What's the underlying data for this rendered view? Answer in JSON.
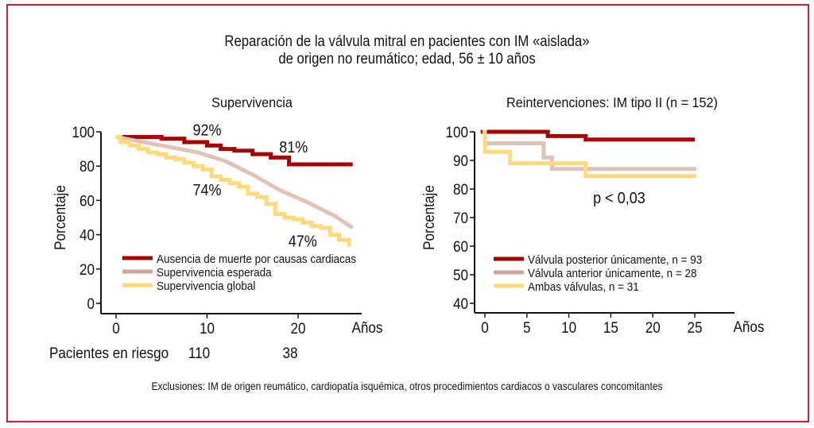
{
  "figure": {
    "title_line1": "Reparación de la válvula mitral en pacientes con IM «aislada»",
    "title_line2": "de origen no reumático; edad, 56 ± 10 años",
    "footer": "Exclusiones: IM de origen reumático, cardiopatía isquémica, otros procedimientos cardiacos o vasculares concomitantes",
    "border_color": "#C8202E"
  },
  "chart_data": [
    {
      "type": "line",
      "title": "Supervivencia",
      "xlabel": "Años",
      "ylabel": "Porcentaje",
      "xlim": [
        0,
        26
      ],
      "ylim": [
        0,
        100
      ],
      "xticks": [
        0,
        10,
        20
      ],
      "xtick_labels": [
        "0",
        "10",
        "20"
      ],
      "yticks": [
        0,
        20,
        40,
        60,
        80,
        100
      ],
      "ytick_labels": [
        "0",
        "20",
        "40",
        "60",
        "80",
        "100"
      ],
      "grid": false,
      "legend_position": "bottom-left",
      "annotations": [
        {
          "text": "92%",
          "x": 10,
          "y": 98
        },
        {
          "text": "81%",
          "x": 19.5,
          "y": 88
        },
        {
          "text": "74%",
          "x": 10,
          "y": 63
        },
        {
          "text": "47%",
          "x": 20.5,
          "y": 33
        }
      ],
      "at_risk": {
        "label": "Pacientes en riesgo",
        "values": [
          {
            "x": 10,
            "n": "110"
          },
          {
            "x": 20,
            "n": "38"
          }
        ]
      },
      "series": [
        {
          "name": "Ausencia de muerte por causas cardiacas",
          "color": "#A80000",
          "step": true,
          "x": [
            0,
            5,
            7.5,
            10,
            11.5,
            13,
            15,
            17,
            19,
            26
          ],
          "y": [
            97,
            96,
            94,
            92,
            90,
            89,
            87,
            85,
            81,
            81
          ]
        },
        {
          "name": "Supervivencia esperada",
          "color": "#E0C2B6",
          "legend_color": "#D0A49A",
          "step": false,
          "x": [
            0,
            3,
            6,
            9,
            12,
            15,
            18,
            21,
            24,
            26
          ],
          "y": [
            97,
            94,
            91,
            88,
            83,
            75,
            66,
            59,
            51,
            44
          ]
        },
        {
          "name": "Supervivencia global",
          "color": "#FFD97A",
          "step": true,
          "x": [
            0,
            0.5,
            1.5,
            2.5,
            3.5,
            4.5,
            5.5,
            6.5,
            7.5,
            8.5,
            9.5,
            10.5,
            11.5,
            12.5,
            13.5,
            14.5,
            15.5,
            16.5,
            17.5,
            18.5,
            19.5,
            20.5,
            21.5,
            22.5,
            23.5,
            24.5,
            25.6
          ],
          "y": [
            97,
            94,
            92,
            90,
            88,
            87,
            85,
            84,
            82,
            80,
            78,
            74,
            72,
            70,
            68,
            64,
            62,
            58,
            52,
            50,
            49,
            47,
            45,
            44,
            40,
            37,
            33
          ]
        }
      ]
    },
    {
      "type": "line",
      "title": "Reintervenciones: IM tipo II (n = 152)",
      "xlabel": "Años",
      "ylabel": "Porcentaje",
      "xlim": [
        -1,
        29
      ],
      "ylim": [
        40,
        100
      ],
      "xticks": [
        0,
        5,
        10,
        15,
        20,
        25
      ],
      "xtick_labels": [
        "0",
        "5",
        "10",
        "15",
        "20",
        "25"
      ],
      "yticks": [
        40,
        50,
        60,
        70,
        80,
        90,
        100
      ],
      "ytick_labels": [
        "40",
        "50",
        "60",
        "70",
        "80",
        "90",
        "100"
      ],
      "grid": false,
      "legend_position": "bottom-left",
      "annotations": [
        {
          "text": "p < 0,03",
          "x": 16,
          "y": 75
        }
      ],
      "series": [
        {
          "name": "Válvula posterior únicamente, n = 93",
          "color": "#A80000",
          "step": true,
          "x": [
            -0.5,
            7.5,
            12,
            25
          ],
          "y": [
            100,
            98.5,
            97.3,
            97.3
          ]
        },
        {
          "name": "Válvula anterior únicamente, n = 28",
          "color": "#E0C2B6",
          "legend_color": "#D0A49A",
          "step": true,
          "x": [
            0,
            7,
            8,
            25.2
          ],
          "y": [
            96,
            91,
            87,
            87
          ]
        },
        {
          "name": "Ambas válvulas, n = 31",
          "color": "#FFD97A",
          "step": true,
          "x": [
            -0.3,
            0,
            3,
            12,
            25.2
          ],
          "y": [
            100,
            93,
            89,
            84.5,
            84.5
          ]
        }
      ]
    }
  ]
}
